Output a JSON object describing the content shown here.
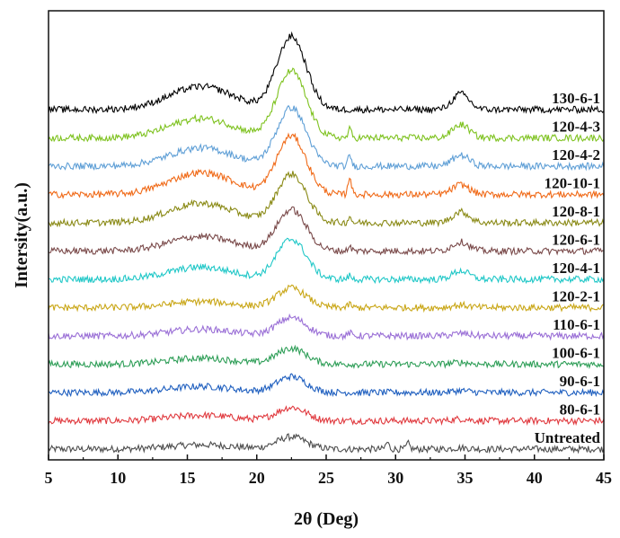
{
  "chart_data": {
    "type": "line",
    "xlabel": "2θ (Deg)",
    "ylabel": "Intersity(a.u.)",
    "xlim": [
      5,
      45
    ],
    "xticks": [
      5,
      10,
      15,
      20,
      25,
      30,
      35,
      40,
      45
    ],
    "yticks_shown": false,
    "grid": false,
    "legend": "labels at right end of each curve",
    "series": [
      {
        "name": "Untreated",
        "color": "#4d4d4d",
        "peaks": [
          {
            "x": 16,
            "h": 0.35
          },
          {
            "x": 22.5,
            "h": 1.0
          },
          {
            "x": 29.4,
            "h": 0.55
          },
          {
            "x": 30.9,
            "h": 0.45
          },
          {
            "x": 34.7,
            "h": 0.1
          }
        ]
      },
      {
        "name": "80-6-1",
        "color": "#e0393e",
        "peaks": [
          {
            "x": 16,
            "h": 0.45
          },
          {
            "x": 22.5,
            "h": 1.1
          },
          {
            "x": 34.7,
            "h": 0.15
          }
        ]
      },
      {
        "name": "90-6-1",
        "color": "#1f5fbf",
        "peaks": [
          {
            "x": 16,
            "h": 0.5
          },
          {
            "x": 22.5,
            "h": 1.3
          },
          {
            "x": 34.7,
            "h": 0.15
          }
        ]
      },
      {
        "name": "100-6-1",
        "color": "#2e9e57",
        "peaks": [
          {
            "x": 16,
            "h": 0.5
          },
          {
            "x": 22.5,
            "h": 1.3
          },
          {
            "x": 34.7,
            "h": 0.15
          }
        ]
      },
      {
        "name": "110-6-1",
        "color": "#9a6fd6",
        "peaks": [
          {
            "x": 16,
            "h": 0.55
          },
          {
            "x": 22.5,
            "h": 1.5
          },
          {
            "x": 26.7,
            "h": 0.25
          },
          {
            "x": 34.7,
            "h": 0.2
          }
        ]
      },
      {
        "name": "120-2-1",
        "color": "#c9a616",
        "peaks": [
          {
            "x": 16,
            "h": 0.5
          },
          {
            "x": 22.5,
            "h": 1.6
          },
          {
            "x": 26.7,
            "h": 0.3
          },
          {
            "x": 34.7,
            "h": 0.2
          }
        ]
      },
      {
        "name": "120-4-1",
        "color": "#1fc7c7",
        "peaks": [
          {
            "x": 16,
            "h": 1.0
          },
          {
            "x": 22.5,
            "h": 3.3
          },
          {
            "x": 26.7,
            "h": 0.3
          },
          {
            "x": 34.7,
            "h": 0.7
          }
        ]
      },
      {
        "name": "120-6-1",
        "color": "#7a4a4a",
        "peaks": [
          {
            "x": 16,
            "h": 1.2
          },
          {
            "x": 22.5,
            "h": 3.4
          },
          {
            "x": 26.7,
            "h": 0.45
          },
          {
            "x": 34.7,
            "h": 0.75
          }
        ]
      },
      {
        "name": "120-8-1",
        "color": "#8a8a16",
        "peaks": [
          {
            "x": 16,
            "h": 1.6
          },
          {
            "x": 22.5,
            "h": 4.0
          },
          {
            "x": 26.7,
            "h": 0.5
          },
          {
            "x": 34.7,
            "h": 0.9
          }
        ]
      },
      {
        "name": "120-10-1",
        "color": "#f06a18",
        "peaks": [
          {
            "x": 16,
            "h": 1.8
          },
          {
            "x": 22.5,
            "h": 4.8
          },
          {
            "x": 26.7,
            "h": 1.5
          },
          {
            "x": 34.7,
            "h": 0.8
          }
        ]
      },
      {
        "name": "120-4-2",
        "color": "#5f9fd6",
        "peaks": [
          {
            "x": 16,
            "h": 1.5
          },
          {
            "x": 22.5,
            "h": 4.8
          },
          {
            "x": 26.7,
            "h": 0.9
          },
          {
            "x": 34.7,
            "h": 0.9
          }
        ]
      },
      {
        "name": "120-4-3",
        "color": "#7ec21f",
        "peaks": [
          {
            "x": 16,
            "h": 1.6
          },
          {
            "x": 22.5,
            "h": 5.5
          },
          {
            "x": 26.7,
            "h": 0.7
          },
          {
            "x": 34.7,
            "h": 1.1
          }
        ]
      },
      {
        "name": "130-6-1",
        "color": "#000000",
        "peaks": [
          {
            "x": 16,
            "h": 1.9
          },
          {
            "x": 22.5,
            "h": 6.0
          },
          {
            "x": 34.7,
            "h": 1.3
          }
        ]
      }
    ]
  }
}
